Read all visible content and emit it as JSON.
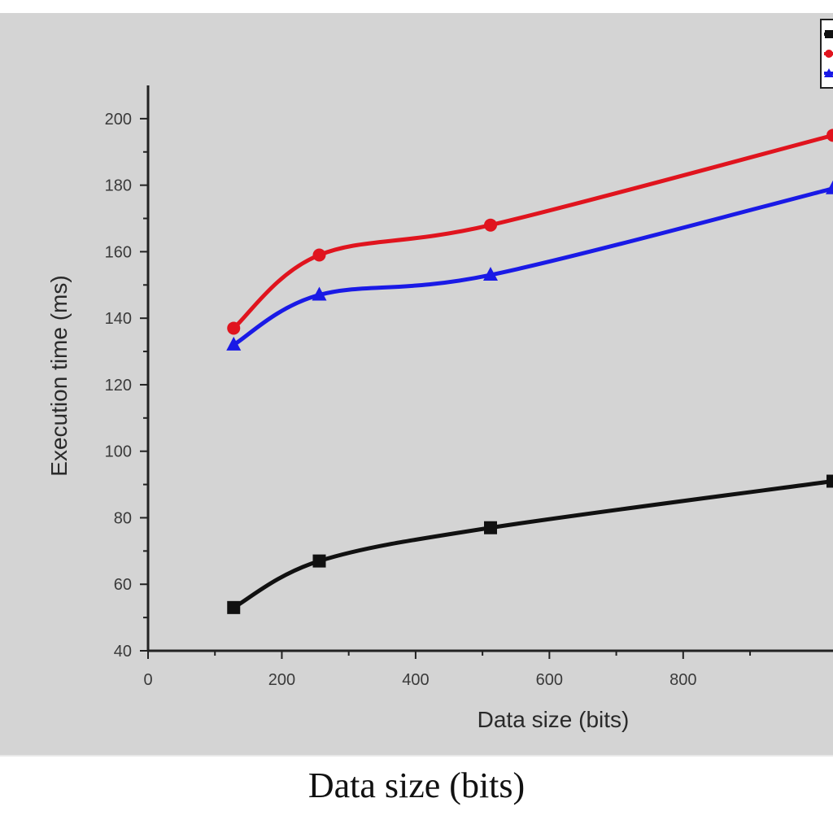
{
  "chart_data": {
    "type": "line",
    "title": "",
    "xlabel": "Data size (bits)",
    "ylabel": "Execution time (ms)",
    "xlim": [
      0,
      1024
    ],
    "ylim": [
      40,
      210
    ],
    "x_ticks": [
      0,
      200,
      400,
      600,
      800
    ],
    "y_ticks": [
      40,
      60,
      80,
      100,
      120,
      140,
      160,
      180,
      200
    ],
    "grid": false,
    "legend_position": "top-right",
    "series": [
      {
        "color": "#111111",
        "marker": "square",
        "x": [
          128,
          256,
          512,
          1024
        ],
        "y": [
          53,
          67,
          77,
          91
        ]
      },
      {
        "color": "#e0141e",
        "marker": "circle",
        "x": [
          128,
          256,
          512,
          1024
        ],
        "y": [
          137,
          159,
          168,
          195
        ]
      },
      {
        "color": "#1a1ae6",
        "marker": "triangle",
        "x": [
          128,
          256,
          512,
          1024
        ],
        "y": [
          132,
          147,
          153,
          179
        ]
      }
    ]
  },
  "caption": "Data size (bits)"
}
